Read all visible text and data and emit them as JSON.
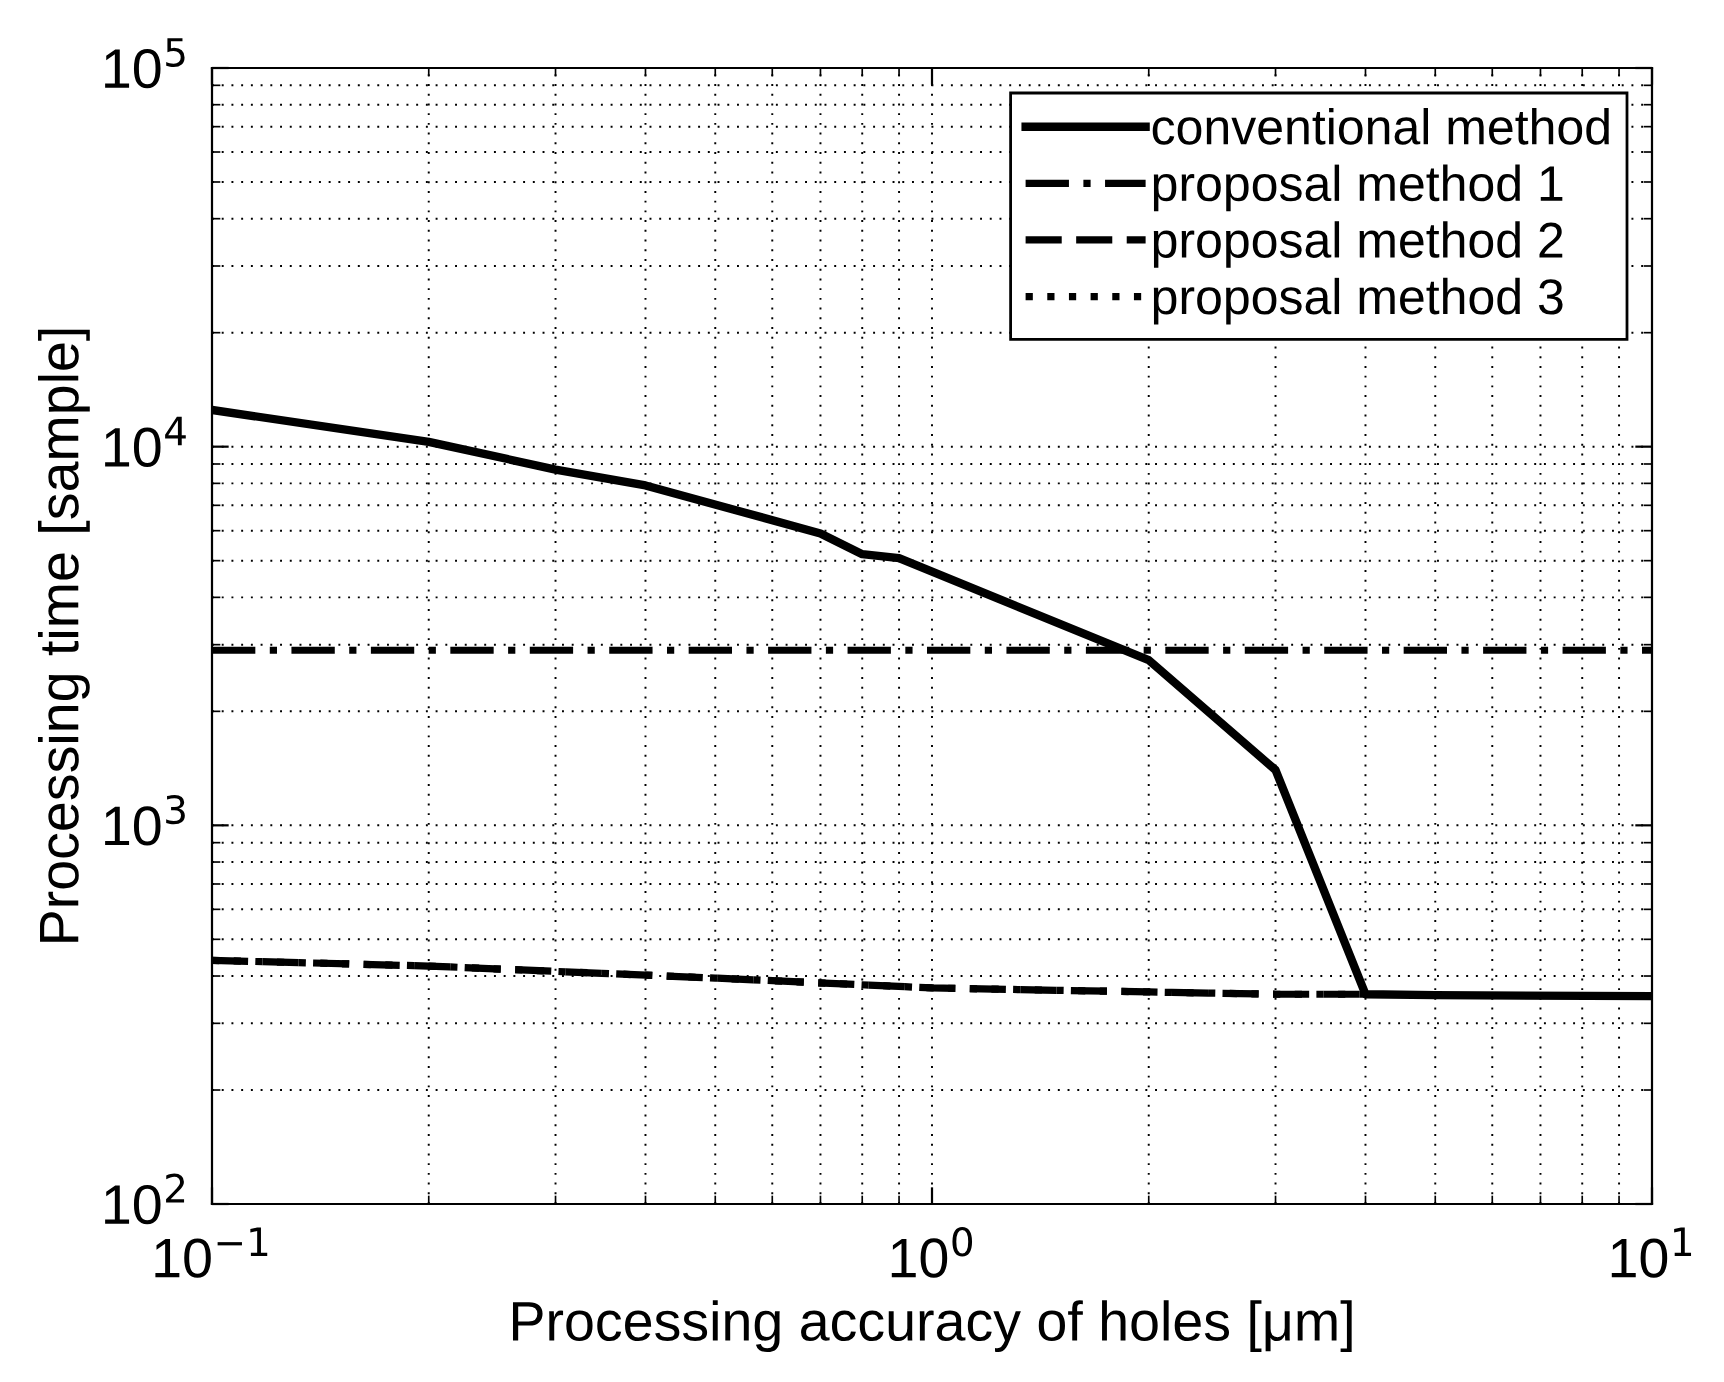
{
  "chart_data": {
    "type": "line",
    "xlabel": "Processing accuracy of holes [μm]",
    "ylabel": "Processing time [sample]",
    "log": "xy",
    "grid": true,
    "legend": "top right",
    "xlim": [
      0.1,
      10
    ],
    "ylim": [
      100,
      100000
    ],
    "xticks": [
      {
        "value": 0.1,
        "label": "10$^{−1}$"
      },
      {
        "value": 1,
        "label": "10$^{0}$"
      },
      {
        "value": 10,
        "label": "10$^{1}$"
      }
    ],
    "yticks": [
      {
        "value": 100,
        "label": "10$^{2}$"
      },
      {
        "value": 1000,
        "label": "10$^{3}$"
      },
      {
        "value": 10000,
        "label": "10$^{4}$"
      },
      {
        "value": 100000,
        "label": "10$^{5}$"
      }
    ],
    "series": [
      {
        "name": "conventional method",
        "color": "#000000",
        "line_style": "solid",
        "x": [
          0.1,
          0.2,
          0.3,
          0.4,
          0.7,
          0.8,
          0.9,
          2,
          3,
          4,
          5,
          10
        ],
        "values": [
          12500,
          10300,
          8700,
          7900,
          5900,
          5200,
          5080,
          2730,
          1400,
          358,
          356,
          354
        ]
      },
      {
        "name": "proposal method 1",
        "color": "#000000",
        "line_style": "dashdot",
        "x": [
          0.1,
          10
        ],
        "values": [
          2900,
          2900
        ]
      },
      {
        "name": "proposal method 2",
        "color": "#000000",
        "line_style": "dashed",
        "x": [
          0.1,
          0.2,
          0.5,
          1,
          2,
          3,
          4
        ],
        "values": [
          440,
          425,
          395,
          372,
          363,
          358,
          358
        ]
      },
      {
        "name": "proposal method 3",
        "color": "#000000",
        "line_style": "dotted",
        "x": [
          0.1,
          0.2,
          0.5,
          1,
          2,
          3,
          4
        ],
        "values": [
          440,
          425,
          395,
          372,
          363,
          358,
          358
        ]
      }
    ]
  }
}
